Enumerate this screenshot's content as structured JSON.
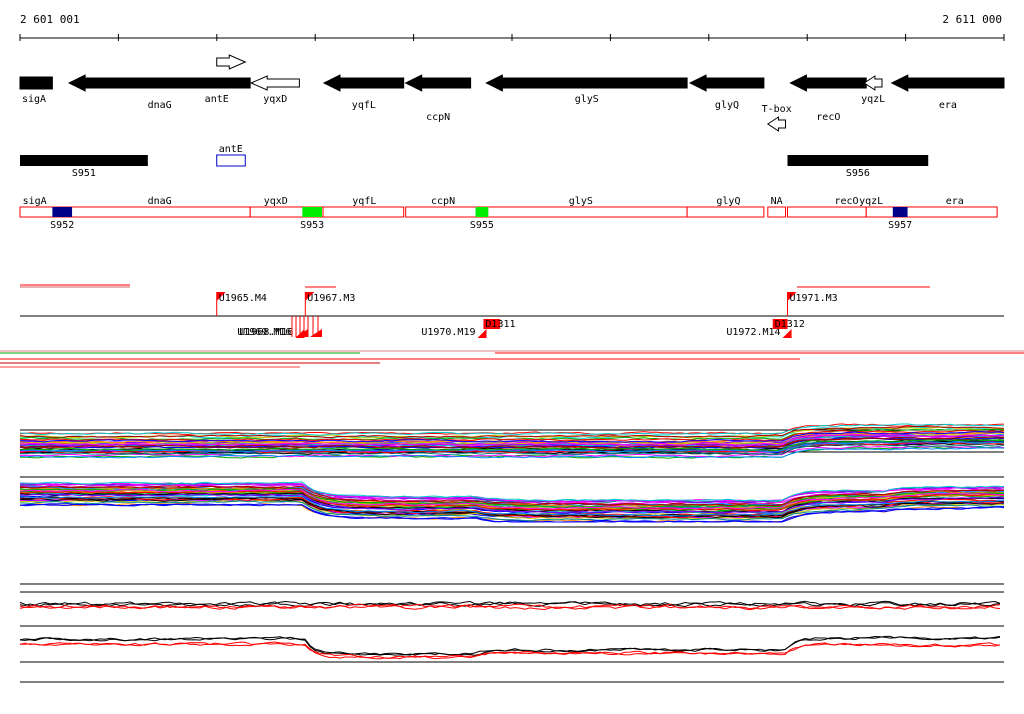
{
  "ruler": {
    "start_label": "2 601 001",
    "end_label": "2 611 000"
  },
  "genes": [
    {
      "name": "sigA",
      "strand": "-",
      "start": 2601001,
      "end": 2601330,
      "style": "filled"
    },
    {
      "name": "dnaG",
      "strand": "-",
      "start": 2601500,
      "end": 2603340,
      "style": "filled"
    },
    {
      "name": "antE",
      "strand": "+",
      "start": 2603000,
      "end": 2603290,
      "style": "outline"
    },
    {
      "name": "yqxD",
      "strand": "-",
      "start": 2603350,
      "end": 2603840,
      "style": "outline"
    },
    {
      "name": "yqfL",
      "strand": "-",
      "start": 2604090,
      "end": 2604900,
      "style": "filled"
    },
    {
      "name": "ccpN",
      "strand": "-",
      "start": 2604920,
      "end": 2605580,
      "style": "filled"
    },
    {
      "name": "glyS",
      "strand": "-",
      "start": 2605740,
      "end": 2607780,
      "style": "filled"
    },
    {
      "name": "glyQ",
      "strand": "-",
      "start": 2607810,
      "end": 2608560,
      "style": "filled"
    },
    {
      "name": "T-box",
      "strand": "-",
      "start": 2608600,
      "end": 2608780,
      "style": "outline"
    },
    {
      "name": "recO",
      "strand": "-",
      "start": 2608830,
      "end": 2609600,
      "style": "filled"
    },
    {
      "name": "yqzL",
      "strand": "-",
      "start": 2609580,
      "end": 2609760,
      "style": "outline"
    },
    {
      "name": "era",
      "strand": "-",
      "start": 2609860,
      "end": 2611000,
      "style": "filled"
    }
  ],
  "antE_box": {
    "name": "antE",
    "start": 2603000,
    "end": 2603290
  },
  "segments": [
    {
      "name": "S951",
      "start": 2601001,
      "end": 2602300
    },
    {
      "name": "S956",
      "start": 2608800,
      "end": 2610230
    }
  ],
  "transcripts": [
    {
      "name": "sigA",
      "start": 2601001,
      "end": 2602300,
      "label_at": 2601150
    },
    {
      "name": "dnaG",
      "start": 2601001,
      "end": 2603340,
      "label_at": 2602420
    },
    {
      "name": "yqxD",
      "start": 2603340,
      "end": 2604080,
      "label_at": 2603600
    },
    {
      "name": "yqfL",
      "start": 2604080,
      "end": 2604900,
      "label_at": 2604500
    },
    {
      "name": "ccpN",
      "start": 2604920,
      "end": 2605680,
      "label_at": 2605300
    },
    {
      "name": "glyS",
      "start": 2605680,
      "end": 2607780,
      "label_at": 2606700
    },
    {
      "name": "glyQ",
      "start": 2607780,
      "end": 2608560,
      "label_at": 2608200
    },
    {
      "name": "NA",
      "start": 2608600,
      "end": 2608780,
      "label_at": 2608690
    },
    {
      "name": "recO",
      "start": 2608800,
      "end": 2609600,
      "label_at": 2609400
    },
    {
      "name": "yqzL",
      "start": 2609600,
      "end": 2609980,
      "label_at": 2609650
    },
    {
      "name": "era",
      "start": 2609980,
      "end": 2610930,
      "label_at": 2610500
    }
  ],
  "sites": [
    {
      "name": "S952",
      "start": 2601330,
      "end": 2601530,
      "color": "#00008b"
    },
    {
      "name": "S953",
      "start": 2603870,
      "end": 2604070,
      "color": "#00ee00"
    },
    {
      "name": "S955",
      "start": 2605630,
      "end": 2605760,
      "color": "#00ee00"
    },
    {
      "name": "S957",
      "start": 2609870,
      "end": 2610020,
      "color": "#00008b"
    }
  ],
  "upshifts": [
    {
      "name": "U1965.M4",
      "pos": 2603000,
      "dir": "up"
    },
    {
      "name": "U1967.M3",
      "pos": 2603900,
      "dir": "up"
    },
    {
      "name": "U1971.M3",
      "pos": 2608800,
      "dir": "up"
    },
    {
      "name": "U1968.M16",
      "pos": 2603800,
      "dir": "down",
      "overlap": "U1969.M16"
    },
    {
      "name": "U1970.M19",
      "pos": 2605650,
      "dir": "down"
    },
    {
      "name": "U1972.M14",
      "pos": 2608750,
      "dir": "down"
    }
  ],
  "downshifts": [
    {
      "name": "D1311",
      "start": 2605710,
      "end": 2605880
    },
    {
      "name": "D1312",
      "start": 2608650,
      "end": 2608800
    }
  ],
  "profile_groups": [
    {
      "name": "top",
      "series_count": 60,
      "baseline": 0.3,
      "shifts": [
        [
          2608800,
          -0.2
        ],
        [
          2603000,
          0.05
        ]
      ]
    },
    {
      "name": "bottom",
      "series_count": 60,
      "baseline": 0.55,
      "shifts": [
        [
          2603900,
          0.3
        ],
        [
          2605650,
          0.15
        ],
        [
          2608800,
          -0.1
        ]
      ]
    }
  ],
  "summary_tracks": [
    {
      "name": "plus",
      "colors": [
        "#000000",
        "#ff0000"
      ]
    },
    {
      "name": "minus",
      "colors": [
        "#000000",
        "#ff0000"
      ]
    }
  ]
}
